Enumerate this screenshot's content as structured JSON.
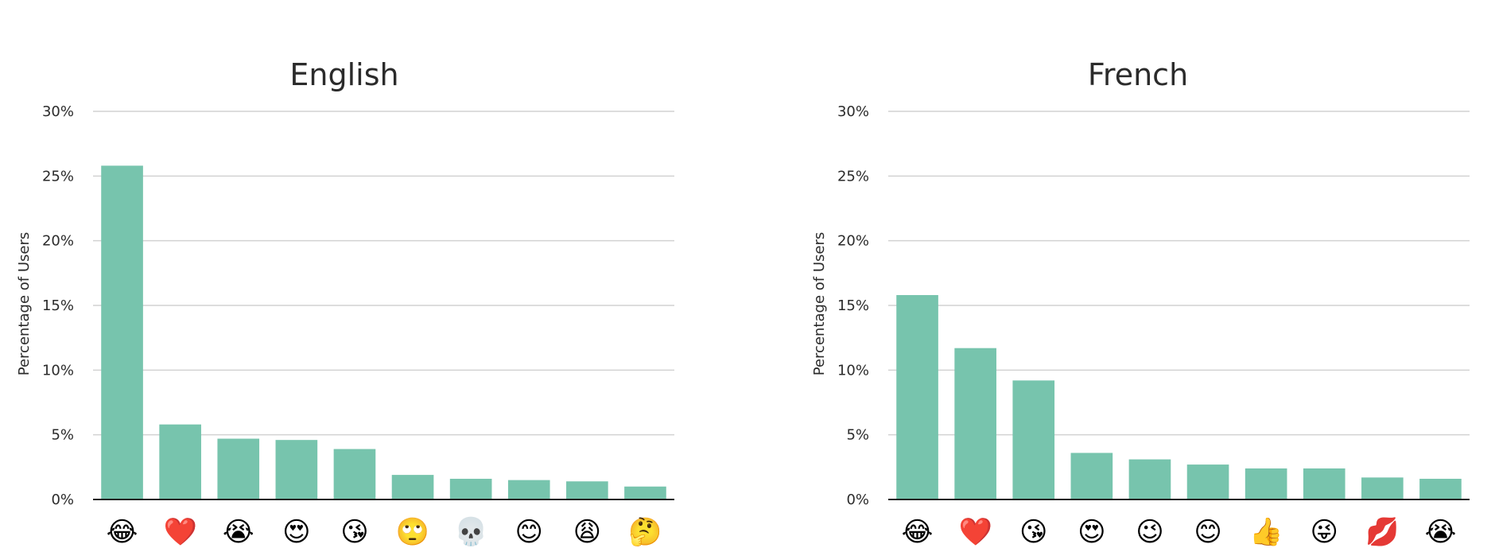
{
  "chart_data": [
    {
      "type": "bar",
      "title": "English",
      "xlabel": "",
      "ylabel": "Percentage of Users",
      "ylim": [
        0,
        30
      ],
      "yticks": [
        "0%",
        "5%",
        "10%",
        "15%",
        "20%",
        "25%",
        "30%"
      ],
      "grid": true,
      "bar_color": "#77c4ad",
      "categories": [
        "😂",
        "❤️",
        "😭",
        "😍",
        "😘",
        "🙄",
        "💀",
        "😊",
        "😩",
        "🤔"
      ],
      "category_icons": [
        "face-with-tears-of-joy",
        "red-heart",
        "loudly-crying-face",
        "smiling-face-with-heart-eyes",
        "face-blowing-a-kiss",
        "face-with-rolling-eyes",
        "skull",
        "smiling-face-with-smiling-eyes",
        "weary-face",
        "thinking-face"
      ],
      "values": [
        25.8,
        5.8,
        4.7,
        4.6,
        3.9,
        1.9,
        1.6,
        1.5,
        1.4,
        1.0
      ]
    },
    {
      "type": "bar",
      "title": "French",
      "xlabel": "",
      "ylabel": "Percentage of Users",
      "ylim": [
        0,
        30
      ],
      "yticks": [
        "0%",
        "5%",
        "10%",
        "15%",
        "20%",
        "25%",
        "30%"
      ],
      "grid": true,
      "bar_color": "#77c4ad",
      "categories": [
        "😂",
        "❤️",
        "😘",
        "😍",
        "😉",
        "😊",
        "👍",
        "😜",
        "💋",
        "😭"
      ],
      "category_icons": [
        "face-with-tears-of-joy",
        "red-heart",
        "face-blowing-a-kiss",
        "smiling-face-with-heart-eyes",
        "winking-face",
        "smiling-face-with-smiling-eyes",
        "thumbs-up",
        "winking-face-with-tongue",
        "kiss-mark",
        "loudly-crying-face"
      ],
      "values": [
        15.8,
        11.7,
        9.2,
        3.6,
        3.1,
        2.7,
        2.4,
        2.4,
        1.7,
        1.6
      ]
    }
  ]
}
